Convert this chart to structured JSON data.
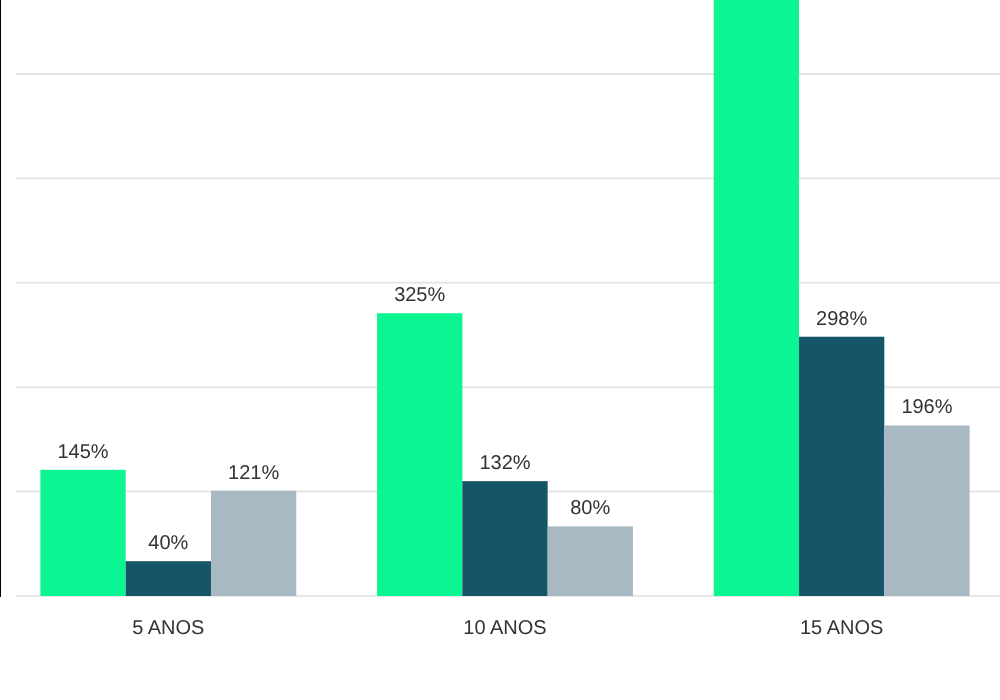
{
  "chart_data": {
    "type": "bar",
    "categories": [
      "5 ANOS",
      "10 ANOS",
      "15 ANOS"
    ],
    "series": [
      {
        "color": "#0bf592",
        "values": [
          145,
          325,
          685
        ],
        "value_labels": [
          "145%",
          "325%",
          null
        ]
      },
      {
        "color": "#145668",
        "values": [
          40,
          132,
          298
        ],
        "value_labels": [
          "40%",
          "132%",
          "298%"
        ]
      },
      {
        "color": "#a9b9c3",
        "values": [
          121,
          80,
          196
        ],
        "value_labels": [
          "121%",
          "80%",
          "196%"
        ]
      }
    ],
    "ylim": [
      0,
      685
    ],
    "yticks": [
      {
        "value": 0,
        "label": null
      },
      {
        "value": 120,
        "label": null
      },
      {
        "value": 240,
        "label": null
      },
      {
        "value": 360,
        "label": null
      },
      {
        "value": 480,
        "label": null
      },
      {
        "value": 600,
        "label": null
      }
    ],
    "grid": "y"
  }
}
